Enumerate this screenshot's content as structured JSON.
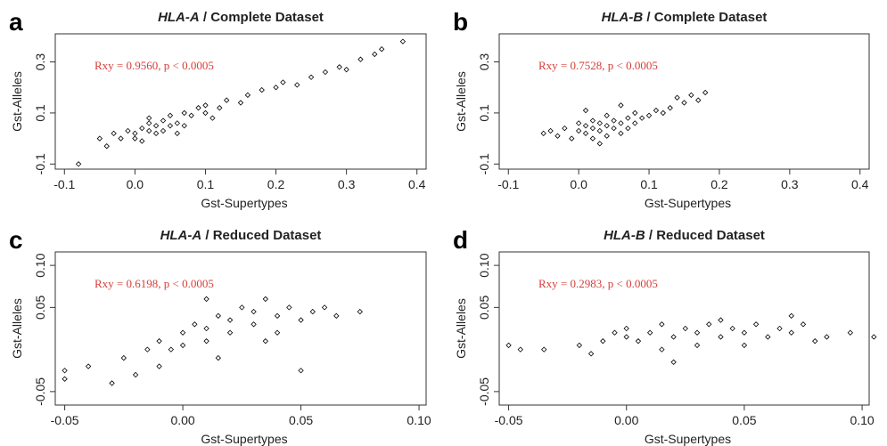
{
  "chart_data": [
    {
      "type": "scatter",
      "panel_label": "a",
      "title_gene": "HLA-A",
      "title": "/ Complete Dataset",
      "xlabel": "Gst-Supertypes",
      "ylabel": "Gst-Alleles",
      "annotation": "Rxy = 0.9560, p < 0.0005",
      "annotation_color": "#d43f3a",
      "color": "#000000",
      "x": [
        -0.08,
        -0.05,
        -0.04,
        -0.03,
        -0.02,
        -0.01,
        0.0,
        0.0,
        0.01,
        0.01,
        0.02,
        0.02,
        0.03,
        0.03,
        0.04,
        0.04,
        0.05,
        0.05,
        0.06,
        0.07,
        0.07,
        0.08,
        0.09,
        0.1,
        0.1,
        0.12,
        0.13,
        0.15,
        0.16,
        0.18,
        0.2,
        0.21,
        0.23,
        0.25,
        0.27,
        0.29,
        0.3,
        0.32,
        0.34,
        0.35,
        0.38,
        0.02,
        0.06,
        0.11
      ],
      "y": [
        -0.1,
        0.0,
        -0.03,
        0.02,
        0.0,
        0.03,
        0.0,
        0.02,
        0.04,
        -0.01,
        0.03,
        0.06,
        0.02,
        0.05,
        0.07,
        0.03,
        0.05,
        0.09,
        0.06,
        0.1,
        0.05,
        0.09,
        0.12,
        0.1,
        0.13,
        0.12,
        0.15,
        0.14,
        0.17,
        0.19,
        0.2,
        0.22,
        0.21,
        0.24,
        0.26,
        0.28,
        0.27,
        0.31,
        0.33,
        0.35,
        0.38,
        0.08,
        0.02,
        0.08
      ],
      "xlim": [
        -0.113,
        0.413
      ],
      "ylim": [
        -0.12,
        0.41
      ],
      "xticks": [
        -0.1,
        {
          "value": 0,
          "label": "0.0"
        },
        0.1,
        0.2,
        0.3,
        0.4
      ],
      "yticks": [
        -0.1,
        0.1,
        0.3
      ]
    },
    {
      "type": "scatter",
      "panel_label": "b",
      "title_gene": "HLA-B",
      "title": "/ Complete Dataset",
      "xlabel": "Gst-Supertypes",
      "ylabel": "Gst-Alleles",
      "annotation": "Rxy = 0.7528, p < 0.0005",
      "annotation_color": "#d43f3a",
      "color": "#000000",
      "x": [
        -0.05,
        -0.04,
        -0.03,
        -0.02,
        -0.01,
        0.0,
        0.0,
        0.01,
        0.01,
        0.02,
        0.02,
        0.02,
        0.03,
        0.03,
        0.04,
        0.04,
        0.04,
        0.05,
        0.05,
        0.06,
        0.06,
        0.07,
        0.07,
        0.08,
        0.08,
        0.09,
        0.1,
        0.11,
        0.12,
        0.13,
        0.14,
        0.15,
        0.16,
        0.17,
        0.18,
        0.03,
        0.01,
        0.06
      ],
      "y": [
        0.02,
        0.03,
        0.01,
        0.04,
        0.0,
        0.03,
        0.06,
        0.02,
        0.05,
        0.0,
        0.04,
        0.07,
        0.03,
        0.06,
        0.01,
        0.05,
        0.09,
        0.04,
        0.07,
        0.02,
        0.06,
        0.08,
        0.04,
        0.1,
        0.06,
        0.08,
        0.09,
        0.11,
        0.1,
        0.12,
        0.16,
        0.14,
        0.17,
        0.15,
        0.18,
        -0.02,
        0.11,
        0.13
      ],
      "xlim": [
        -0.113,
        0.413
      ],
      "ylim": [
        -0.12,
        0.41
      ],
      "xticks": [
        -0.1,
        {
          "value": 0,
          "label": "0.0"
        },
        0.1,
        0.2,
        0.3,
        0.4
      ],
      "yticks": [
        -0.1,
        0.1,
        0.3
      ]
    },
    {
      "type": "scatter",
      "panel_label": "c",
      "title_gene": "HLA-A",
      "title": "/ Reduced Dataset",
      "xlabel": "Gst-Supertypes",
      "ylabel": "Gst-Alleles",
      "annotation": "Rxy = 0.6198, p < 0.0005",
      "annotation_color": "#d43f3a",
      "color": "#000000",
      "x": [
        -0.05,
        -0.05,
        -0.04,
        -0.03,
        -0.025,
        -0.02,
        -0.015,
        -0.01,
        -0.01,
        -0.005,
        0.0,
        0.0,
        0.005,
        0.01,
        0.01,
        0.015,
        0.02,
        0.02,
        0.025,
        0.03,
        0.03,
        0.035,
        0.04,
        0.04,
        0.045,
        0.05,
        0.055,
        0.06,
        0.065,
        0.075,
        0.05,
        0.01,
        0.015,
        0.035
      ],
      "y": [
        -0.035,
        -0.025,
        -0.02,
        -0.04,
        -0.01,
        -0.03,
        0.0,
        -0.02,
        0.01,
        0.0,
        0.02,
        0.005,
        0.03,
        0.01,
        0.025,
        0.04,
        0.02,
        0.035,
        0.05,
        0.03,
        0.045,
        0.06,
        0.04,
        0.02,
        0.05,
        0.035,
        0.045,
        0.05,
        0.04,
        0.045,
        -0.025,
        0.06,
        -0.01,
        0.01
      ],
      "xlim": [
        -0.054,
        0.103
      ],
      "ylim": [
        -0.066,
        0.116
      ],
      "xticks": [
        -0.05,
        {
          "value": 0,
          "label": "0.00"
        },
        0.05,
        {
          "value": 0.1,
          "label": "0.10"
        }
      ],
      "yticks": [
        -0.05,
        0.05,
        {
          "value": 0.1,
          "label": "0.10"
        }
      ]
    },
    {
      "type": "scatter",
      "panel_label": "d",
      "title_gene": "HLA-B",
      "title": "/ Reduced Dataset",
      "xlabel": "Gst-Supertypes",
      "ylabel": "Gst-Alleles",
      "annotation": "Rxy = 0.2983, p < 0.0005",
      "annotation_color": "#d43f3a",
      "color": "#000000",
      "x": [
        -0.05,
        -0.045,
        -0.035,
        -0.02,
        -0.015,
        -0.01,
        -0.005,
        0.0,
        0.0,
        0.005,
        0.01,
        0.015,
        0.015,
        0.02,
        0.025,
        0.03,
        0.03,
        0.035,
        0.04,
        0.045,
        0.05,
        0.05,
        0.055,
        0.06,
        0.065,
        0.07,
        0.075,
        0.08,
        0.085,
        0.095,
        0.105,
        0.02,
        0.04,
        0.07
      ],
      "y": [
        0.005,
        0.0,
        0.0,
        0.005,
        -0.005,
        0.01,
        0.02,
        0.015,
        0.025,
        0.01,
        0.02,
        0.03,
        0.0,
        0.015,
        0.025,
        0.02,
        0.005,
        0.03,
        0.015,
        0.025,
        0.02,
        0.005,
        0.03,
        0.015,
        0.025,
        0.02,
        0.03,
        0.01,
        0.015,
        0.02,
        0.015,
        -0.015,
        0.035,
        0.04
      ],
      "xlim": [
        -0.054,
        0.103
      ],
      "ylim": [
        -0.066,
        0.116
      ],
      "xticks": [
        -0.05,
        {
          "value": 0,
          "label": "0.00"
        },
        0.05,
        {
          "value": 0.1,
          "label": "0.10"
        }
      ],
      "yticks": [
        -0.05,
        0.05,
        {
          "value": 0.1,
          "label": "0.10"
        }
      ]
    }
  ]
}
